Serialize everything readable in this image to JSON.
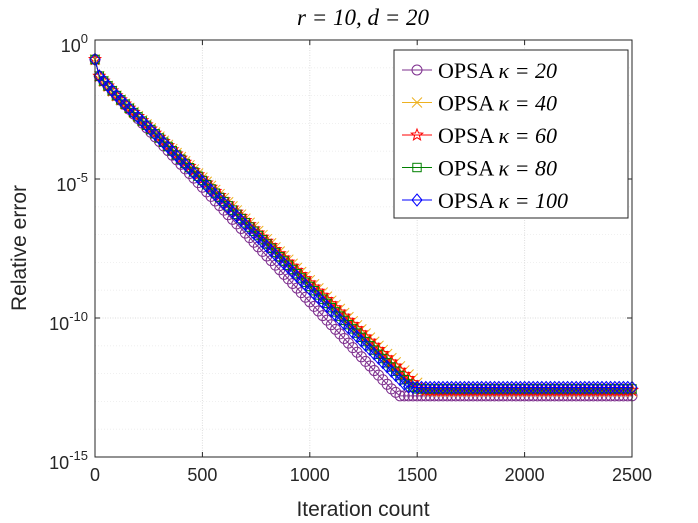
{
  "chart_data": {
    "type": "line",
    "title": "r = 10, d = 20",
    "xlabel": "Iteration count",
    "ylabel": "Relative error",
    "xlim": [
      0,
      2500
    ],
    "ylim_log10": [
      -15,
      0
    ],
    "yscale": "log",
    "x_ticks": [
      0,
      500,
      1000,
      1500,
      2000,
      2500
    ],
    "y_ticks": [
      {
        "base": "10",
        "exp": "0"
      },
      {
        "base": "10",
        "exp": "-5"
      },
      {
        "base": "10",
        "exp": "-10"
      },
      {
        "base": "10",
        "exp": "-15"
      }
    ],
    "grid": true,
    "legend_position": "top-right",
    "series": [
      {
        "name": "OPSA",
        "kappa_label": "κ = 20",
        "color": "#7E2F8E",
        "marker": "circle",
        "x": [
          0,
          20,
          100,
          1380,
          1420,
          2500
        ],
        "log10_y": [
          -0.7,
          -1.3,
          -2.0,
          -12.55,
          -12.8,
          -12.8
        ]
      },
      {
        "name": "OPSA",
        "kappa_label": "κ = 40",
        "color": "#EDB120",
        "marker": "cross",
        "x": [
          0,
          20,
          100,
          1530,
          1560,
          2500
        ],
        "log10_y": [
          -0.7,
          -1.3,
          -2.0,
          -12.55,
          -12.65,
          -12.65
        ]
      },
      {
        "name": "OPSA",
        "kappa_label": "κ = 60",
        "color": "#FF0000",
        "marker": "star",
        "x": [
          0,
          20,
          100,
          1510,
          1540,
          2500
        ],
        "log10_y": [
          -0.7,
          -1.3,
          -2.0,
          -12.55,
          -12.6,
          -12.6
        ]
      },
      {
        "name": "OPSA",
        "kappa_label": "κ = 80",
        "color": "#008000",
        "marker": "square",
        "x": [
          0,
          20,
          100,
          1470,
          1500,
          2500
        ],
        "log10_y": [
          -0.7,
          -1.3,
          -2.0,
          -12.45,
          -12.55,
          -12.55
        ]
      },
      {
        "name": "OPSA",
        "kappa_label": "κ = 100",
        "color": "#0000FF",
        "marker": "diamond",
        "x": [
          0,
          20,
          100,
          1450,
          1480,
          2500
        ],
        "log10_y": [
          -0.7,
          -1.3,
          -2.0,
          -12.45,
          -12.5,
          -12.5
        ]
      }
    ]
  }
}
